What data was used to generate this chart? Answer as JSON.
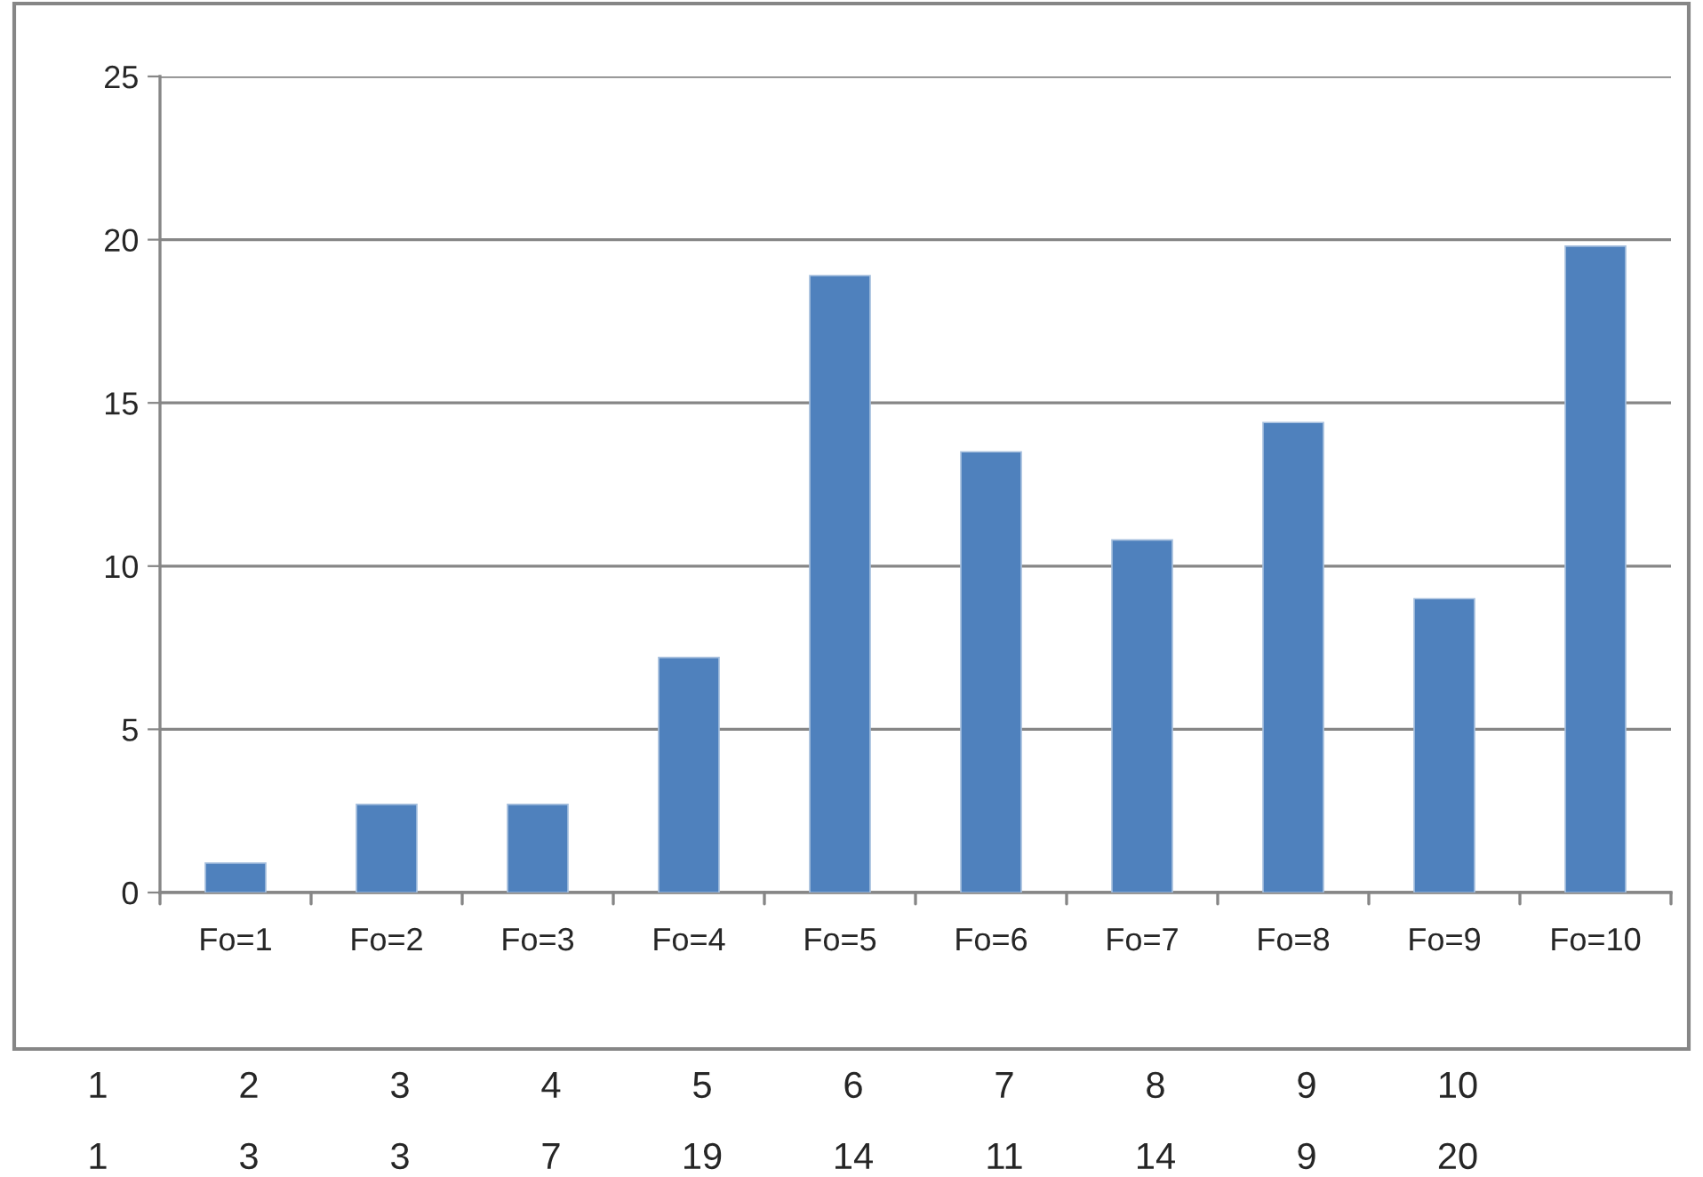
{
  "chart_data": {
    "type": "bar",
    "categories": [
      "Fo=1",
      "Fo=2",
      "Fo=3",
      "Fo=4",
      "Fo=5",
      "Fo=6",
      "Fo=7",
      "Fo=8",
      "Fo=9",
      "Fo=10"
    ],
    "values": [
      0.9,
      2.7,
      2.7,
      7.2,
      18.9,
      13.5,
      10.8,
      14.4,
      9.0,
      19.8
    ],
    "color": "#4f81bd",
    "ylim": [
      0,
      25
    ],
    "yticks": [
      0,
      5,
      10,
      15,
      20,
      25
    ],
    "grid": "y",
    "legend": false,
    "annotations": [
      "1",
      "2",
      "3",
      "4",
      "5",
      "6",
      "7",
      "8",
      "9",
      "10",
      "1",
      "3",
      "3",
      "7",
      "19",
      "14",
      "11",
      "14",
      "9",
      "20"
    ]
  }
}
